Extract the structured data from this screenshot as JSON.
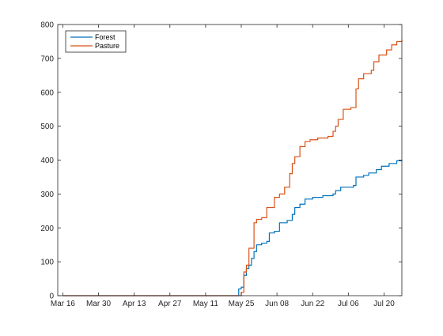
{
  "chart_data": {
    "type": "line",
    "title": "",
    "xlabel": "",
    "ylabel": "",
    "x_type": "date",
    "xlim": [
      "2020-03-14",
      "2020-07-27"
    ],
    "ylim": [
      0,
      800
    ],
    "x_ticks": [
      {
        "date": "2020-03-16",
        "label": "Mar 16"
      },
      {
        "date": "2020-03-30",
        "label": "Mar 30"
      },
      {
        "date": "2020-04-13",
        "label": "Apr 13"
      },
      {
        "date": "2020-04-27",
        "label": "Apr 27"
      },
      {
        "date": "2020-05-11",
        "label": "May 11"
      },
      {
        "date": "2020-05-25",
        "label": "May 25"
      },
      {
        "date": "2020-06-08",
        "label": "Jun 08"
      },
      {
        "date": "2020-06-22",
        "label": "Jun 22"
      },
      {
        "date": "2020-07-06",
        "label": "Jul 06"
      },
      {
        "date": "2020-07-20",
        "label": "Jul 20"
      }
    ],
    "y_ticks": [
      0,
      100,
      200,
      300,
      400,
      500,
      600,
      700,
      800
    ],
    "grid": false,
    "legend_position": "top-left",
    "series": [
      {
        "name": "Forest",
        "color": "#0072BD",
        "points": [
          [
            "2020-03-16",
            0
          ],
          [
            "2020-05-23",
            0
          ],
          [
            "2020-05-24",
            20
          ],
          [
            "2020-05-25",
            25
          ],
          [
            "2020-05-26",
            60
          ],
          [
            "2020-05-27",
            80
          ],
          [
            "2020-05-28",
            90
          ],
          [
            "2020-05-29",
            110
          ],
          [
            "2020-05-30",
            130
          ],
          [
            "2020-05-31",
            150
          ],
          [
            "2020-06-02",
            155
          ],
          [
            "2020-06-04",
            160
          ],
          [
            "2020-06-05",
            185
          ],
          [
            "2020-06-07",
            190
          ],
          [
            "2020-06-09",
            215
          ],
          [
            "2020-06-12",
            222
          ],
          [
            "2020-06-14",
            240
          ],
          [
            "2020-06-15",
            260
          ],
          [
            "2020-06-17",
            270
          ],
          [
            "2020-06-19",
            285
          ],
          [
            "2020-06-22",
            290
          ],
          [
            "2020-06-26",
            295
          ],
          [
            "2020-06-30",
            300
          ],
          [
            "2020-07-01",
            310
          ],
          [
            "2020-07-03",
            320
          ],
          [
            "2020-07-08",
            325
          ],
          [
            "2020-07-09",
            350
          ],
          [
            "2020-07-12",
            355
          ],
          [
            "2020-07-14",
            362
          ],
          [
            "2020-07-17",
            372
          ],
          [
            "2020-07-19",
            382
          ],
          [
            "2020-07-22",
            390
          ],
          [
            "2020-07-25",
            398
          ],
          [
            "2020-07-27",
            400
          ]
        ]
      },
      {
        "name": "Pasture",
        "color": "#D95319",
        "points": [
          [
            "2020-03-16",
            0
          ],
          [
            "2020-05-24",
            0
          ],
          [
            "2020-05-25",
            10
          ],
          [
            "2020-05-26",
            70
          ],
          [
            "2020-05-27",
            90
          ],
          [
            "2020-05-28",
            140
          ],
          [
            "2020-05-29",
            140
          ],
          [
            "2020-05-30",
            215
          ],
          [
            "2020-05-31",
            225
          ],
          [
            "2020-06-02",
            230
          ],
          [
            "2020-06-04",
            260
          ],
          [
            "2020-06-07",
            290
          ],
          [
            "2020-06-09",
            300
          ],
          [
            "2020-06-11",
            320
          ],
          [
            "2020-06-13",
            360
          ],
          [
            "2020-06-14",
            390
          ],
          [
            "2020-06-15",
            410
          ],
          [
            "2020-06-17",
            440
          ],
          [
            "2020-06-19",
            455
          ],
          [
            "2020-06-21",
            460
          ],
          [
            "2020-06-24",
            465
          ],
          [
            "2020-06-28",
            470
          ],
          [
            "2020-06-30",
            485
          ],
          [
            "2020-07-01",
            500
          ],
          [
            "2020-07-02",
            520
          ],
          [
            "2020-07-04",
            550
          ],
          [
            "2020-07-07",
            555
          ],
          [
            "2020-07-09",
            610
          ],
          [
            "2020-07-10",
            640
          ],
          [
            "2020-07-12",
            655
          ],
          [
            "2020-07-15",
            665
          ],
          [
            "2020-07-16",
            690
          ],
          [
            "2020-07-18",
            710
          ],
          [
            "2020-07-21",
            725
          ],
          [
            "2020-07-23",
            740
          ],
          [
            "2020-07-25",
            750
          ],
          [
            "2020-07-27",
            755
          ]
        ]
      }
    ]
  }
}
